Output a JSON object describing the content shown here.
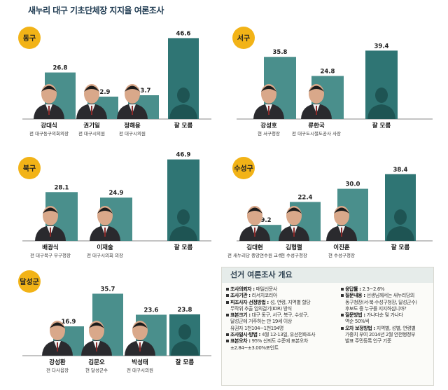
{
  "title": "새누리 대구 기초단체장 지지율 여론조사",
  "colors": {
    "bar": "#4a8f8c",
    "bar_unknown": "#2f7574",
    "badge": "#f2b317",
    "axis": "#8a8a8a"
  },
  "chart_data": [
    {
      "type": "bar",
      "region": "동구",
      "categories": [
        "강대식",
        "권기일",
        "정해용",
        "잘 모름"
      ],
      "descriptions": [
        "전 대구동구의회의장",
        "전 대구시의원",
        "전 대구시의원",
        ""
      ],
      "values": [
        26.8,
        12.9,
        13.7,
        46.6
      ],
      "value_labels": [
        "26.8",
        "12.9",
        "13.7",
        "46.6"
      ],
      "ylim": [
        0,
        50
      ]
    },
    {
      "type": "bar",
      "region": "서구",
      "categories": [
        "강성호",
        "류한국",
        "잘 모름"
      ],
      "descriptions": [
        "현 서구청장",
        "전 대구도시철도공사 사장",
        ""
      ],
      "values": [
        35.8,
        24.8,
        39.4
      ],
      "value_labels": [
        "35.8",
        "24.8",
        "39.4"
      ],
      "ylim": [
        0,
        50
      ]
    },
    {
      "type": "bar",
      "region": "북구",
      "categories": [
        "배광식",
        "이재술",
        "잘 모름"
      ],
      "descriptions": [
        "전 대구북구 부구청장",
        "전 대구시의회 의장",
        ""
      ],
      "values": [
        28.1,
        24.9,
        46.9
      ],
      "value_labels": [
        "28.1",
        "24.9",
        "46.9"
      ],
      "ylim": [
        0,
        50
      ]
    },
    {
      "type": "bar",
      "region": "수성구",
      "categories": [
        "김대현",
        "김형렬",
        "이진훈",
        "잘 모름"
      ],
      "descriptions": [
        "전 새누리당 중앙연수원 교수",
        "현 수성구청장",
        "현 수성구청장",
        ""
      ],
      "values": [
        9.2,
        22.4,
        30.0,
        38.4
      ],
      "value_labels": [
        "9.2",
        "22.4",
        "30.0",
        "38.4"
      ],
      "ylim": [
        0,
        50
      ]
    },
    {
      "type": "bar",
      "region": "달성군",
      "categories": [
        "강성환",
        "김문오",
        "박성태",
        "잘 모름"
      ],
      "descriptions": [
        "전 다사읍장",
        "현 달성군수",
        "전 대구시의원",
        ""
      ],
      "values": [
        16.9,
        35.7,
        23.6,
        23.8
      ],
      "value_labels": [
        "16.9",
        "35.7",
        "23.6",
        "23.8"
      ],
      "ylim": [
        0,
        50
      ]
    }
  ],
  "info": {
    "title": "선거 여론조사 개요",
    "left": [
      {
        "key": "조사의뢰자",
        "text": "매일신문사"
      },
      {
        "key": "조사기관",
        "text": "리서치코리아"
      },
      {
        "key": "피조사자 선정방법",
        "text": "성, 연령, 지역별 할당",
        "more": [
          "무작위 추출 임의걸기(IDR) 방식"
        ]
      },
      {
        "key": "표본크기",
        "text": "대구 동구, 서구, 북구, 수성구,",
        "more": [
          "달성군에 거주하는 만 19세 이상",
          "유권자 1천104~1천194명"
        ]
      },
      {
        "key": "조사일시·방법",
        "text": "4월 12-13일, 유선전화조사"
      },
      {
        "key": "표본오차",
        "text": "95% 신뢰도 수준에 표본오차",
        "more": [
          "±2.84~±3.00%포인트"
        ]
      }
    ],
    "right": [
      {
        "key": "응답률",
        "text": "2.3~2.6%"
      },
      {
        "key": "질문내용",
        "text": "선생님께서는 새누리당의",
        "more": [
          "동구청장(서·북·수성구청장, 달성군수)",
          "후보도 중 누구를 지지하십니까?"
        ]
      },
      {
        "key": "질문방법",
        "text": "가나다순 및 가나다",
        "more": [
          "역순 50%씩"
        ]
      },
      {
        "key": "오차 보정방법",
        "text": "지역별, 성별, 연령별",
        "more": [
          "가중치 부여 2014년 2월 안전행정부",
          "발표 주민등록 인구 기준"
        ]
      }
    ]
  }
}
